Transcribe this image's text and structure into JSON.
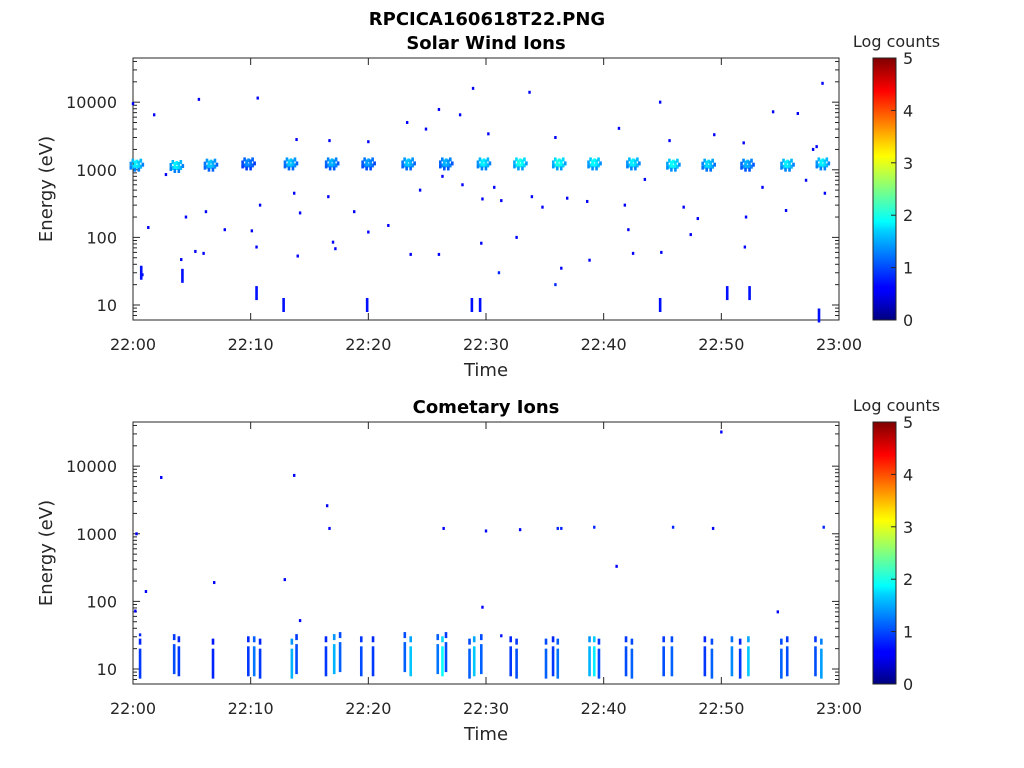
{
  "figure_title": "RPCICA160618T22.PNG",
  "chart_data": [
    {
      "type": "heatmap",
      "title": "Solar Wind Ions",
      "xlabel": "Time",
      "ylabel": "Energy (eV)",
      "x_ticks": [
        "22:00",
        "22:10",
        "22:20",
        "22:30",
        "22:40",
        "22:50",
        "23:00"
      ],
      "xlim_minutes": [
        0,
        60
      ],
      "y_scale": "log",
      "ylim": [
        6,
        45000
      ],
      "y_ticks": [
        10,
        100,
        1000,
        10000
      ],
      "y_tick_labels": [
        "10",
        "100",
        "1000",
        "10000"
      ],
      "colorbar": {
        "label": "Log counts",
        "range": [
          0,
          5
        ],
        "ticks": [
          "0",
          "1",
          "2",
          "3",
          "4",
          "5"
        ],
        "colormap": "jet"
      },
      "blobs": [
        {
          "t": 0.3,
          "e": 1150,
          "v": 1.8
        },
        {
          "t": 3.7,
          "e": 1100,
          "v": 1.8
        },
        {
          "t": 6.6,
          "e": 1150,
          "v": 1.6
        },
        {
          "t": 9.8,
          "e": 1200,
          "v": 1.3
        },
        {
          "t": 13.4,
          "e": 1200,
          "v": 1.6
        },
        {
          "t": 16.9,
          "e": 1200,
          "v": 1.5
        },
        {
          "t": 20.0,
          "e": 1200,
          "v": 1.4
        },
        {
          "t": 23.4,
          "e": 1200,
          "v": 1.6
        },
        {
          "t": 26.6,
          "e": 1200,
          "v": 1.5
        },
        {
          "t": 29.8,
          "e": 1200,
          "v": 1.8
        },
        {
          "t": 32.9,
          "e": 1200,
          "v": 2.0
        },
        {
          "t": 36.2,
          "e": 1200,
          "v": 2.0
        },
        {
          "t": 39.2,
          "e": 1200,
          "v": 1.9
        },
        {
          "t": 42.5,
          "e": 1200,
          "v": 1.8
        },
        {
          "t": 45.9,
          "e": 1150,
          "v": 1.9
        },
        {
          "t": 48.9,
          "e": 1150,
          "v": 1.7
        },
        {
          "t": 52.2,
          "e": 1150,
          "v": 1.5
        },
        {
          "t": 55.6,
          "e": 1150,
          "v": 1.8
        },
        {
          "t": 58.6,
          "e": 1200,
          "v": 1.8
        }
      ],
      "points": [
        [
          0.0,
          9500,
          0.6
        ],
        [
          1.8,
          6500,
          0.6
        ],
        [
          5.6,
          11000,
          0.6
        ],
        [
          10.6,
          11500,
          0.6
        ],
        [
          13.9,
          2800,
          0.6
        ],
        [
          16.7,
          2700,
          0.6
        ],
        [
          20.0,
          2600,
          0.6
        ],
        [
          23.3,
          5000,
          0.6
        ],
        [
          24.9,
          4000,
          0.6
        ],
        [
          26.0,
          7800,
          0.6
        ],
        [
          27.8,
          6500,
          0.6
        ],
        [
          28.9,
          16000,
          0.6
        ],
        [
          30.2,
          3400,
          0.6
        ],
        [
          33.7,
          14000,
          0.6
        ],
        [
          35.9,
          3000,
          0.6
        ],
        [
          41.3,
          4100,
          0.6
        ],
        [
          44.8,
          10000,
          0.6
        ],
        [
          45.6,
          2700,
          0.6
        ],
        [
          49.4,
          3300,
          0.6
        ],
        [
          51.9,
          2500,
          0.6
        ],
        [
          54.4,
          7200,
          0.6
        ],
        [
          56.5,
          6800,
          0.6
        ],
        [
          58.6,
          19000,
          0.6
        ],
        [
          57.8,
          2000,
          0.6
        ],
        [
          58.1,
          2200,
          0.6
        ],
        [
          2.8,
          850,
          0.6
        ],
        [
          6.2,
          240,
          0.6
        ],
        [
          7.8,
          130,
          0.6
        ],
        [
          10.8,
          300,
          0.6
        ],
        [
          13.7,
          450,
          0.6
        ],
        [
          14.2,
          230,
          0.6
        ],
        [
          16.6,
          400,
          0.6
        ],
        [
          18.8,
          240,
          0.6
        ],
        [
          21.7,
          150,
          0.6
        ],
        [
          24.4,
          500,
          0.6
        ],
        [
          26.3,
          800,
          0.6
        ],
        [
          28.0,
          600,
          0.6
        ],
        [
          29.7,
          370,
          0.6
        ],
        [
          30.7,
          550,
          0.6
        ],
        [
          31.3,
          350,
          0.6
        ],
        [
          33.9,
          400,
          0.6
        ],
        [
          34.8,
          280,
          0.6
        ],
        [
          36.9,
          380,
          0.6
        ],
        [
          38.6,
          340,
          0.6
        ],
        [
          41.8,
          300,
          0.6
        ],
        [
          43.5,
          720,
          0.6
        ],
        [
          46.8,
          280,
          0.6
        ],
        [
          47.4,
          110,
          0.6
        ],
        [
          48.0,
          190,
          0.6
        ],
        [
          52.1,
          200,
          0.6
        ],
        [
          53.5,
          550,
          0.6
        ],
        [
          55.5,
          250,
          0.6
        ],
        [
          57.2,
          700,
          0.6
        ],
        [
          58.8,
          450,
          0.6
        ],
        [
          1.3,
          140,
          0.6
        ],
        [
          4.5,
          200,
          0.6
        ],
        [
          4.1,
          47,
          0.6
        ],
        [
          5.3,
          62,
          0.6
        ],
        [
          6.0,
          58,
          0.6
        ],
        [
          10.1,
          125,
          0.6
        ],
        [
          10.5,
          72,
          0.6
        ],
        [
          14.0,
          53,
          0.6
        ],
        [
          17.0,
          85,
          0.6
        ],
        [
          17.2,
          68,
          0.6
        ],
        [
          20.0,
          120,
          0.6
        ],
        [
          23.6,
          56,
          0.6
        ],
        [
          26.0,
          56,
          0.6
        ],
        [
          29.6,
          82,
          0.6
        ],
        [
          31.1,
          30,
          0.8
        ],
        [
          32.6,
          100,
          0.6
        ],
        [
          35.9,
          20,
          0.8
        ],
        [
          36.4,
          35,
          0.6
        ],
        [
          38.8,
          46,
          0.6
        ],
        [
          42.1,
          130,
          0.6
        ],
        [
          42.5,
          58,
          0.6
        ],
        [
          44.9,
          60,
          0.6
        ],
        [
          52.0,
          72,
          0.6
        ],
        [
          0.8,
          28,
          0.7
        ]
      ],
      "bars": [
        [
          10.5,
          15,
          0.7
        ],
        [
          12.8,
          10,
          0.7
        ],
        [
          19.9,
          10,
          0.7
        ],
        [
          28.8,
          10,
          0.7
        ],
        [
          29.5,
          10,
          0.7
        ],
        [
          44.8,
          10,
          0.7
        ],
        [
          50.5,
          15,
          0.7
        ],
        [
          52.4,
          15,
          0.7
        ],
        [
          58.3,
          7,
          0.7
        ],
        [
          0.7,
          30,
          0.7
        ],
        [
          4.2,
          27,
          0.7
        ]
      ]
    },
    {
      "type": "heatmap",
      "title": "Cometary Ions",
      "xlabel": "Time",
      "ylabel": "Energy (eV)",
      "x_ticks": [
        "22:00",
        "22:10",
        "22:20",
        "22:30",
        "22:40",
        "22:50",
        "23:00"
      ],
      "xlim_minutes": [
        0,
        60
      ],
      "y_scale": "log",
      "ylim": [
        6,
        45000
      ],
      "y_ticks": [
        10,
        100,
        1000,
        10000
      ],
      "y_tick_labels": [
        "10",
        "100",
        "1000",
        "10000"
      ],
      "colorbar": {
        "label": "Log counts",
        "range": [
          0,
          5
        ],
        "ticks": [
          "0",
          "1",
          "2",
          "3",
          "4",
          "5"
        ],
        "colormap": "jet"
      },
      "points": [
        [
          0.3,
          1000,
          0.6
        ],
        [
          2.4,
          6800,
          0.6
        ],
        [
          6.9,
          190,
          0.6
        ],
        [
          12.9,
          210,
          0.6
        ],
        [
          13.7,
          7300,
          0.6
        ],
        [
          16.5,
          2600,
          0.6
        ],
        [
          16.7,
          1200,
          0.6
        ],
        [
          26.4,
          1200,
          0.6
        ],
        [
          30.0,
          1100,
          0.6
        ],
        [
          32.9,
          1150,
          0.6
        ],
        [
          36.1,
          1200,
          0.8
        ],
        [
          36.4,
          1200,
          0.8
        ],
        [
          39.2,
          1250,
          0.8
        ],
        [
          41.1,
          330,
          0.6
        ],
        [
          45.9,
          1250,
          0.8
        ],
        [
          49.3,
          1200,
          0.6
        ],
        [
          50.0,
          32000,
          0.6
        ],
        [
          58.7,
          1250,
          0.8
        ],
        [
          54.8,
          70,
          0.6
        ],
        [
          0.2,
          72,
          0.6
        ],
        [
          0.6,
          32,
          0.8
        ],
        [
          1.1,
          140,
          0.6
        ],
        [
          14.2,
          52,
          0.6
        ],
        [
          29.7,
          82,
          0.6
        ],
        [
          31.3,
          31,
          0.7
        ]
      ],
      "bars": [
        [
          0.6,
          12,
          0.9
        ],
        [
          3.5,
          14,
          1.0
        ],
        [
          3.9,
          13,
          0.9
        ],
        [
          6.8,
          12,
          0.8
        ],
        [
          9.8,
          13,
          0.9
        ],
        [
          10.3,
          13,
          1.2
        ],
        [
          10.8,
          12,
          0.9
        ],
        [
          13.5,
          12,
          1.5
        ],
        [
          13.9,
          14,
          1.0
        ],
        [
          16.4,
          13,
          0.9
        ],
        [
          17.1,
          14,
          1.5
        ],
        [
          17.6,
          15,
          1.1
        ],
        [
          19.4,
          13,
          1.0
        ],
        [
          20.4,
          13,
          0.9
        ],
        [
          23.1,
          15,
          1.1
        ],
        [
          23.6,
          13,
          1.6
        ],
        [
          25.9,
          14,
          1.2
        ],
        [
          26.3,
          13,
          1.9
        ],
        [
          26.6,
          15,
          1.0
        ],
        [
          28.6,
          12,
          1.1
        ],
        [
          29.0,
          13,
          1.6
        ],
        [
          29.6,
          14,
          1.1
        ],
        [
          32.1,
          13,
          0.9
        ],
        [
          32.6,
          12,
          1.0
        ],
        [
          35.1,
          12,
          1.1
        ],
        [
          35.7,
          13,
          0.9
        ],
        [
          36.1,
          12,
          1.2
        ],
        [
          38.8,
          13,
          1.5
        ],
        [
          39.2,
          13,
          1.8
        ],
        [
          39.6,
          12,
          1.0
        ],
        [
          41.9,
          13,
          1.0
        ],
        [
          42.4,
          12,
          1.1
        ],
        [
          45.1,
          13,
          1.0
        ],
        [
          45.8,
          13,
          1.1
        ],
        [
          48.6,
          13,
          0.9
        ],
        [
          49.2,
          12,
          1.1
        ],
        [
          50.9,
          13,
          1.3
        ],
        [
          51.6,
          12,
          0.9
        ],
        [
          52.3,
          13,
          1.6
        ],
        [
          55.1,
          12,
          1.1
        ],
        [
          55.6,
          13,
          1.0
        ],
        [
          58.0,
          13,
          1.0
        ],
        [
          58.5,
          12,
          1.4
        ]
      ]
    }
  ]
}
